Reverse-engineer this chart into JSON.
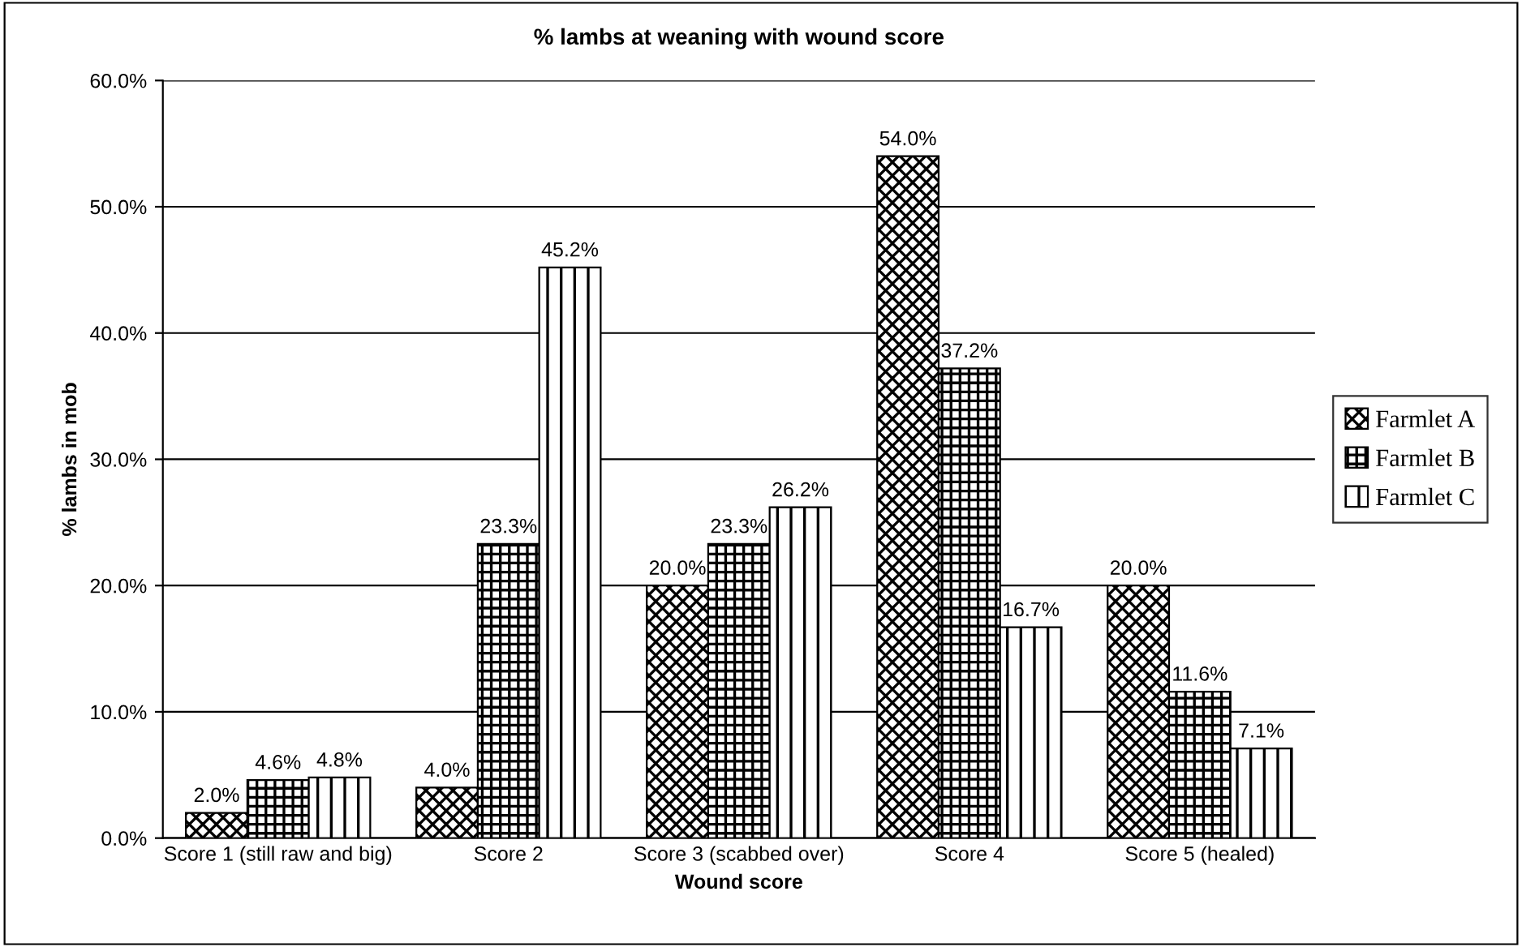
{
  "chart_data": {
    "type": "bar",
    "title": "% lambs at weaning with wound score",
    "xlabel": "Wound score",
    "ylabel": "% lambs in mob",
    "categories": [
      "Score 1 (still raw and big)",
      "Score 2",
      "Score 3 (scabbed over)",
      "Score 4",
      "Score 5 (healed)"
    ],
    "series": [
      {
        "name": "Farmlet A",
        "color": "#000000",
        "values": [
          2.0,
          4.0,
          20.0,
          54.0,
          20.0
        ],
        "value_labels": [
          "2.0%",
          "4.0%",
          "20.0%",
          "54.0%",
          "20.0%"
        ]
      },
      {
        "name": "Farmlet B",
        "color": "#000000",
        "values": [
          4.6,
          23.3,
          23.3,
          37.2,
          11.6
        ],
        "value_labels": [
          "4.6%",
          "23.3%",
          "23.3%",
          "37.2%",
          "11.6%"
        ]
      },
      {
        "name": "Farmlet C",
        "color": "#000000",
        "values": [
          4.8,
          45.2,
          26.2,
          16.7,
          7.1
        ],
        "value_labels": [
          "4.8%",
          "45.2%",
          "26.2%",
          "16.7%",
          "7.1%"
        ]
      }
    ],
    "ylim": [
      0,
      60
    ],
    "yticks": [
      {
        "value": 0,
        "label": "0.0%"
      },
      {
        "value": 10,
        "label": "10.0%"
      },
      {
        "value": 20,
        "label": "20.0%"
      },
      {
        "value": 30,
        "label": "30.0%"
      },
      {
        "value": 40,
        "label": "40.0%"
      },
      {
        "value": 50,
        "label": "50.0%"
      },
      {
        "value": 60,
        "label": "60.0%"
      }
    ],
    "grid": "y",
    "legend": "right"
  }
}
